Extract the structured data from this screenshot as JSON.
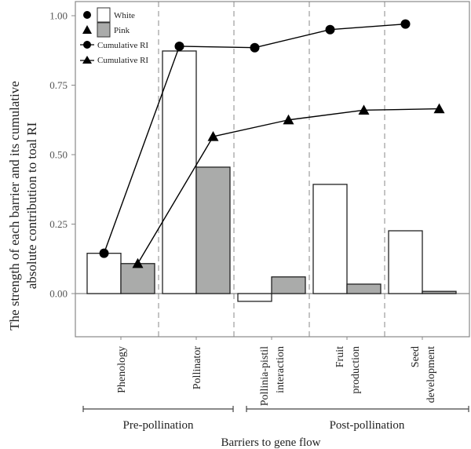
{
  "chart_data": {
    "type": "bar",
    "title": "",
    "xlabel": "Barriers to gene flow",
    "ylabel_lines": [
      "The strength of each barrier and its cumulative",
      "absolute contribution to toal RI"
    ],
    "ylim": [
      -0.15,
      1.05
    ],
    "yticks": [
      0.0,
      0.25,
      0.5,
      0.75,
      1.0
    ],
    "ytick_labels": [
      "0.00",
      "0.25",
      "0.50",
      "0.75",
      "1.00"
    ],
    "grid": false,
    "category_dividers": "dashed vertical lines between categories",
    "categories": [
      {
        "lines": [
          "Phenology"
        ]
      },
      {
        "lines": [
          "Pollinator"
        ]
      },
      {
        "lines": [
          "Pollinia-pistil",
          "interaction"
        ]
      },
      {
        "lines": [
          "Fruit",
          "production"
        ]
      },
      {
        "lines": [
          "Seed",
          "development"
        ]
      }
    ],
    "category_groups": [
      {
        "label": "Pre-pollination",
        "categories": [
          0,
          1
        ]
      },
      {
        "label": "Post-pollination",
        "categories": [
          2,
          3,
          4
        ]
      }
    ],
    "series": [
      {
        "name": "White",
        "kind": "bar",
        "fill": "#ffffff",
        "stroke": "#222222",
        "values": [
          0.145,
          0.873,
          -0.028,
          0.393,
          0.226
        ]
      },
      {
        "name": "Pink",
        "kind": "bar",
        "fill": "#aaabaa",
        "stroke": "#222222",
        "values": [
          0.108,
          0.455,
          0.06,
          0.034,
          0.008
        ]
      },
      {
        "name": "Cumulative RI",
        "kind": "line",
        "marker": "circle",
        "color": "#000000",
        "values": [
          0.145,
          0.89,
          0.885,
          0.95,
          0.97
        ]
      },
      {
        "name": "Cumulative RI",
        "kind": "line",
        "marker": "triangle",
        "color": "#000000",
        "values": [
          0.108,
          0.565,
          0.625,
          0.66,
          0.665
        ]
      }
    ],
    "legend": {
      "placement": "top-left",
      "entries": [
        {
          "label": "White",
          "symbol": "circle+white-box"
        },
        {
          "label": "Pink",
          "symbol": "triangle+gray-box"
        },
        {
          "label": "Cumulative RI",
          "symbol": "circle-line"
        },
        {
          "label": "Cumulative RI",
          "symbol": "triangle-line"
        }
      ]
    }
  }
}
